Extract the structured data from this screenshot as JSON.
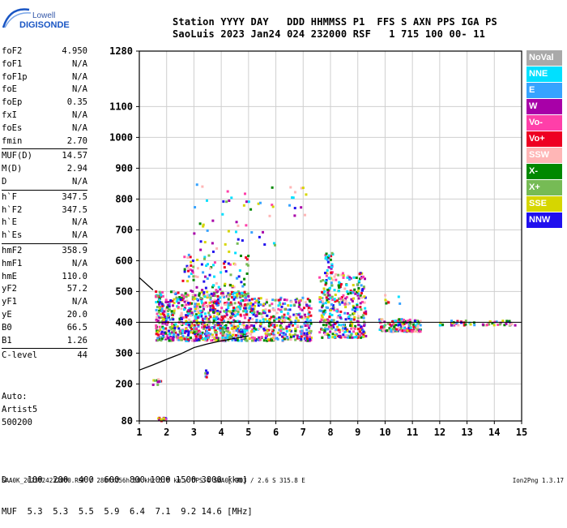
{
  "logo": {
    "line1": "Lowell",
    "line2": "DIGISONDE"
  },
  "header": {
    "line1": "Station YYYY DAY   DDD HHMMSS P1  FFS S AXN PPS IGA PS",
    "line2": "SaoLuis 2023 Jan24 024 232000 RSF   1 715 100 00- 11"
  },
  "params": [
    {
      "k": "foF2",
      "v": "4.950"
    },
    {
      "k": "foF1",
      "v": "N/A"
    },
    {
      "k": "foF1p",
      "v": "N/A"
    },
    {
      "k": "foE",
      "v": "N/A"
    },
    {
      "k": "foEp",
      "v": "0.35"
    },
    {
      "k": "fxI",
      "v": "N/A"
    },
    {
      "k": "foEs",
      "v": "N/A"
    },
    {
      "k": "fmin",
      "v": "2.70"
    },
    {
      "k": "MUF(D)",
      "v": "14.57"
    },
    {
      "k": "M(D)",
      "v": "2.94"
    },
    {
      "k": "D",
      "v": "N/A"
    },
    {
      "k": "h`F",
      "v": "347.5"
    },
    {
      "k": "h`F2",
      "v": "347.5"
    },
    {
      "k": "h`E",
      "v": "N/A"
    },
    {
      "k": "h`Es",
      "v": "N/A"
    },
    {
      "k": "hmF2",
      "v": "358.9"
    },
    {
      "k": "hmF1",
      "v": "N/A"
    },
    {
      "k": "hmE",
      "v": "110.0"
    },
    {
      "k": "yF2",
      "v": "57.2"
    },
    {
      "k": "yF1",
      "v": "N/A"
    },
    {
      "k": "yE",
      "v": "20.0"
    },
    {
      "k": "B0",
      "v": "66.5"
    },
    {
      "k": "B1",
      "v": "1.26"
    },
    {
      "k": "C-level",
      "v": "44"
    }
  ],
  "auto": {
    "line1": "Auto:",
    "line2": "Artist5",
    "line3": "500200"
  },
  "muf_table": {
    "line1": "D    100  200  400  600  800 1000 1500 3000 [km]",
    "line2": "MUF  5.3  5.3  5.5  5.9  6.4  7.1  9.2 14.6 [MHz]"
  },
  "footer": "SAA0K_2023024232000.RSF / 280fx256h 50 kHz 5.0 km / DPS-4 SAA0K 903 / 2.6 S 315.8 E",
  "version": "Ion2Png 1.3.17",
  "legend": [
    {
      "label": "NoVal",
      "color": "#a9a9a9"
    },
    {
      "label": "NNE",
      "color": "#00e0ff"
    },
    {
      "label": "E",
      "color": "#36a3ff"
    },
    {
      "label": "W",
      "color": "#a800a8"
    },
    {
      "label": "Vo-",
      "color": "#ff3fa9"
    },
    {
      "label": "Vo+",
      "color": "#ee0022"
    },
    {
      "label": "SSW",
      "color": "#ffb6b6"
    },
    {
      "label": "X-",
      "color": "#008800"
    },
    {
      "label": "X+",
      "color": "#76bb55"
    },
    {
      "label": "SSE",
      "color": "#d6d600"
    },
    {
      "label": "NNW",
      "color": "#2010ee"
    }
  ],
  "chart_data": {
    "type": "scatter",
    "xlim": [
      1,
      15
    ],
    "ylim": [
      80,
      1280
    ],
    "x_ticks": [
      1,
      2,
      3,
      4,
      5,
      6,
      7,
      8,
      9,
      10,
      11,
      12,
      13,
      14,
      15
    ],
    "y_ticks": [
      80,
      200,
      300,
      400,
      500,
      600,
      700,
      800,
      900,
      1000,
      1100,
      1280
    ],
    "grid": true,
    "reference_line_y": 400,
    "trace": {
      "x": [
        1.0,
        1.5,
        2.0,
        2.5,
        3.0,
        3.5,
        4.0,
        4.5,
        5.0
      ],
      "y": [
        245,
        262,
        280,
        297,
        318,
        330,
        340,
        348,
        356
      ]
    },
    "trace_upper": {
      "x": [
        1.0,
        1.5
      ],
      "y": [
        545,
        505
      ]
    },
    "echo_clusters": [
      {
        "x": [
          1.7,
          2.0
        ],
        "y": [
          80,
          90
        ],
        "n": 14
      },
      {
        "x": [
          1.5,
          1.8
        ],
        "y": [
          195,
          215
        ],
        "n": 10
      },
      {
        "x": [
          3.4,
          3.5
        ],
        "y": [
          220,
          260
        ],
        "n": 6
      },
      {
        "x": [
          1.6,
          5.0
        ],
        "y": [
          340,
          500
        ],
        "n": 900
      },
      {
        "x": [
          2.6,
          5.0
        ],
        "y": [
          480,
          640
        ],
        "n": 120
      },
      {
        "x": [
          3.0,
          6.0
        ],
        "y": [
          650,
          850
        ],
        "n": 45
      },
      {
        "x": [
          5.0,
          7.3
        ],
        "y": [
          340,
          480
        ],
        "n": 360
      },
      {
        "x": [
          6.5,
          7.2
        ],
        "y": [
          740,
          840
        ],
        "n": 12
      },
      {
        "x": [
          7.6,
          9.3
        ],
        "y": [
          350,
          560
        ],
        "n": 380
      },
      {
        "x": [
          7.8,
          8.1
        ],
        "y": [
          560,
          630
        ],
        "n": 25
      },
      {
        "x": [
          9.8,
          11.3
        ],
        "y": [
          370,
          410
        ],
        "n": 160
      },
      {
        "x": [
          10.0,
          10.6
        ],
        "y": [
          460,
          490
        ],
        "n": 8
      },
      {
        "x": [
          12.0,
          14.8
        ],
        "y": [
          390,
          405
        ],
        "n": 55
      }
    ]
  }
}
